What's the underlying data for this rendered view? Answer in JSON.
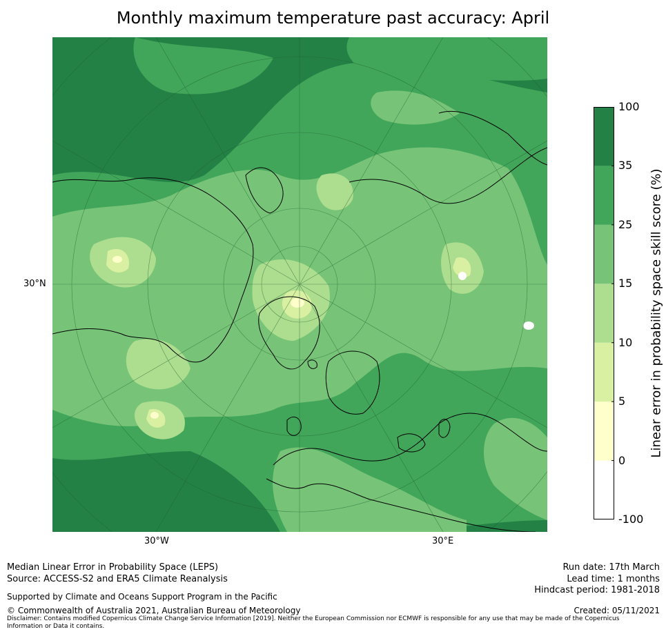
{
  "title": "Monthly maximum temperature past accuracy: April",
  "map": {
    "labels": {
      "lat": "30°N",
      "lon_west": "30°W",
      "lon_east": "30°E"
    },
    "colors": {
      "ocean_bg": "#248146",
      "zone_35_100": "#248146",
      "zone_25_35": "#41a65a",
      "zone_15_25": "#77c478",
      "zone_10_15": "#addd8e",
      "zone_5_10": "#d9f0a3",
      "zone_0_5": "#ffffcc",
      "zone_neg": "#ffffff",
      "coast": "#000000"
    }
  },
  "colorbar": {
    "label": "Linear error in probability space skill score (%)",
    "ticks": [
      "100",
      "35",
      "25",
      "15",
      "10",
      "5",
      "0",
      "-100"
    ],
    "bins": [
      {
        "from": -100,
        "to": 0,
        "color": "#ffffff"
      },
      {
        "from": 0,
        "to": 5,
        "color": "#ffffcc"
      },
      {
        "from": 5,
        "to": 10,
        "color": "#d9f0a3"
      },
      {
        "from": 10,
        "to": 15,
        "color": "#addd8e"
      },
      {
        "from": 15,
        "to": 25,
        "color": "#77c478"
      },
      {
        "from": 25,
        "to": 35,
        "color": "#41a65a"
      },
      {
        "from": 35,
        "to": 100,
        "color": "#248146"
      }
    ]
  },
  "footer": {
    "method": "Median Linear Error in Probability Space (LEPS)",
    "source": "Source: ACCESS-S2 and ERA5 Climate Reanalysis",
    "support": "Supported by Climate and Oceans Support Program in the Pacific",
    "copyright": "© Commonwealth of Australia 2021, Australian Bureau of Meteorology",
    "disclaimer": "Disclaimer: Contains modified Copernicus Climate Change Service Information [2019]. Neither the European Commission nor ECMWF is responsible for any use that may be made of the Copernicus Information or Data it contains.",
    "run_date": "Run date: 17th March",
    "lead_time": "Lead time: 1 months",
    "hindcast": "Hindcast period: 1981-2018",
    "created": "Created: 05/11/2021"
  }
}
